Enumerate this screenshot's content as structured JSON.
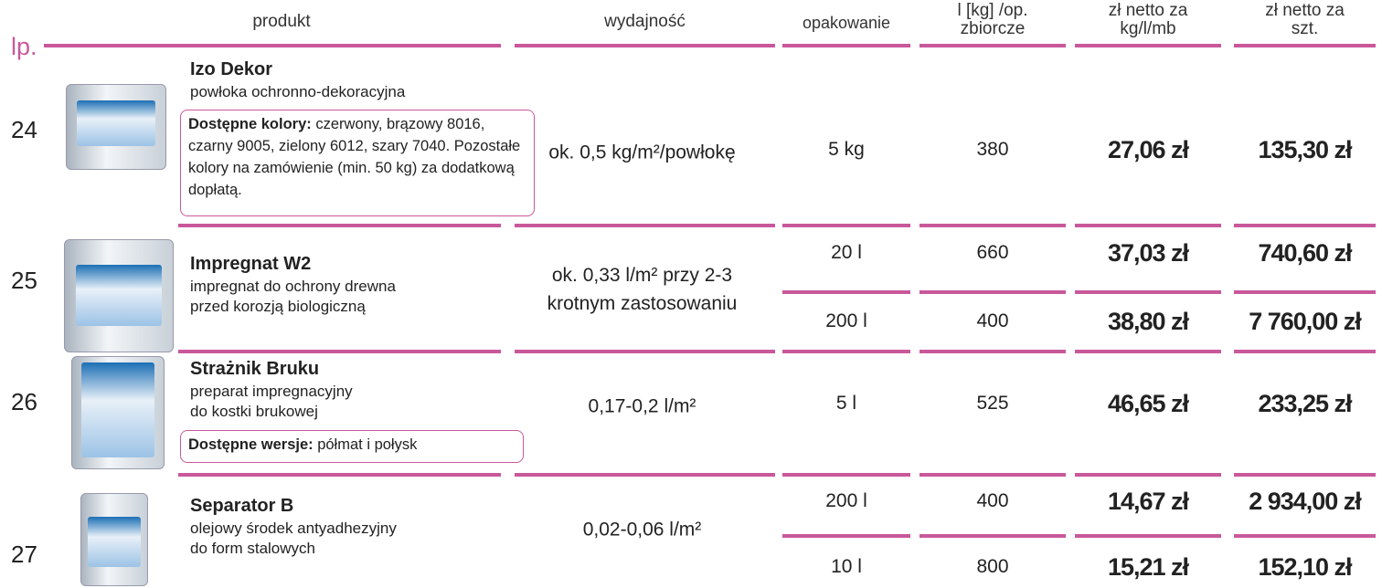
{
  "header": {
    "lp": "lp.",
    "produkt": "produkt",
    "wydajnosc": "wydajność",
    "opakowanie": "opakowanie",
    "bulk": [
      "l [kg] /op.",
      "zbiorcze"
    ],
    "price_unit": [
      "zł netto za",
      "kg/l/mb"
    ],
    "price_item": [
      "zł netto za",
      "szt."
    ]
  },
  "products": [
    {
      "lp": "24",
      "name": "Izo Dekor",
      "description": [
        "powłoka ochronno-dekoracyjna"
      ],
      "note": {
        "label": "Dostępne kolory:",
        "text": " czerwony, brązowy 8016, czarny 9005, zielony 6012, szary 7040. Pozostałe kolory na zamówienie (min. 50 kg) za dodatkową dopłatą."
      },
      "yield": "ok. 0,5 kg/m²/powłokę",
      "variants": [
        {
          "packaging": "5 kg",
          "bulk": "380",
          "price_unit": "27,06 zł",
          "price_item": "135,30 zł"
        }
      ]
    },
    {
      "lp": "25",
      "name": "Impregnat W2",
      "description": [
        "impregnat do ochrony drewna",
        "przed korozją biologiczną"
      ],
      "yield": "ok. 0,33 l/m² przy 2-3 krotnym zastosowaniu",
      "variants": [
        {
          "packaging": "20 l",
          "bulk": "660",
          "price_unit": "37,03 zł",
          "price_item": "740,60 zł"
        },
        {
          "packaging": "200 l",
          "bulk": "400",
          "price_unit": "38,80 zł",
          "price_item": "7 760,00 zł"
        }
      ]
    },
    {
      "lp": "26",
      "name": "Strażnik Bruku",
      "description": [
        "preparat impregnacyjny",
        "do kostki brukowej"
      ],
      "note": {
        "label": "Dostępne wersje:",
        "text": " półmat i połysk"
      },
      "yield": "0,17-0,2 l/m²",
      "variants": [
        {
          "packaging": "5 l",
          "bulk": "525",
          "price_unit": "46,65 zł",
          "price_item": "233,25 zł"
        }
      ]
    },
    {
      "lp": "27",
      "name": "Separator B",
      "description": [
        "olejowy środek antyadhezyjny",
        "do form stalowych"
      ],
      "yield": "0,02-0,06 l/m²",
      "variants": [
        {
          "packaging": "200 l",
          "bulk": "400",
          "price_unit": "14,67 zł",
          "price_item": "2 934,00 zł"
        },
        {
          "packaging": "10 l",
          "bulk": "800",
          "price_unit": "15,21 zł",
          "price_item": "152,10 zł"
        }
      ]
    }
  ]
}
